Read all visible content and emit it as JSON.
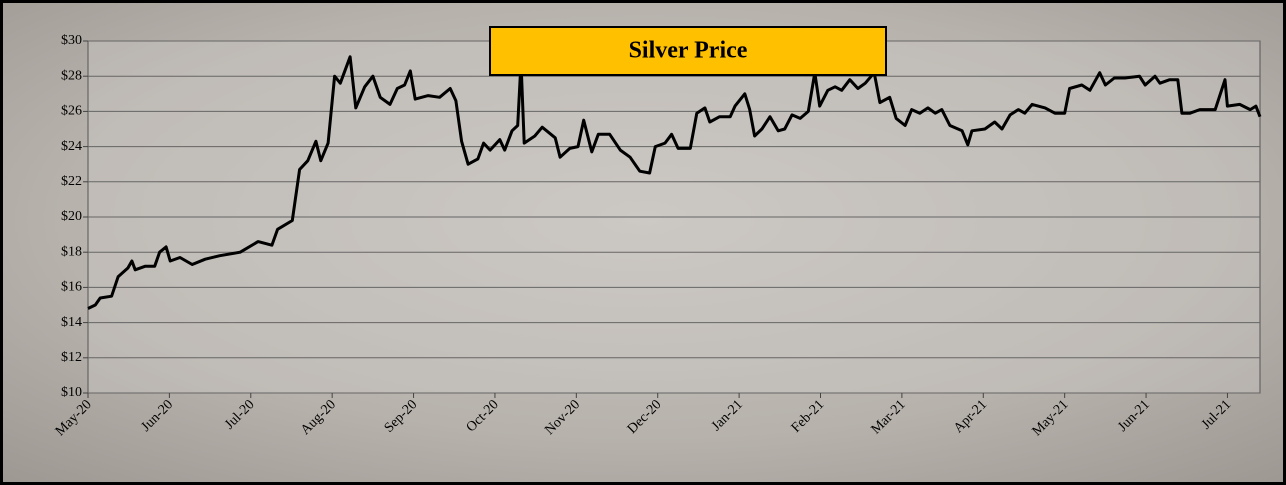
{
  "chart_data": {
    "type": "line",
    "title": "Silver Price",
    "color": "#000000",
    "grid": true,
    "xlim": [
      0,
      14.4
    ],
    "xticks": [
      {
        "value": 0,
        "label": "May-20"
      },
      {
        "value": 1,
        "label": "Jun-20"
      },
      {
        "value": 2,
        "label": "Jul-20"
      },
      {
        "value": 3,
        "label": "Aug-20"
      },
      {
        "value": 4,
        "label": "Sep-20"
      },
      {
        "value": 5,
        "label": "Oct-20"
      },
      {
        "value": 6,
        "label": "Nov-20"
      },
      {
        "value": 7,
        "label": "Dec-20"
      },
      {
        "value": 8,
        "label": "Jan-21"
      },
      {
        "value": 9,
        "label": "Feb-21"
      },
      {
        "value": 10,
        "label": "Mar-21"
      },
      {
        "value": 11,
        "label": "Apr-21"
      },
      {
        "value": 12,
        "label": "May-21"
      },
      {
        "value": 13,
        "label": "Jun-21"
      },
      {
        "value": 14,
        "label": "Jul-21"
      }
    ],
    "ylim": [
      10,
      30
    ],
    "yticks": [
      {
        "value": 10,
        "label": "$10"
      },
      {
        "value": 12,
        "label": "$12"
      },
      {
        "value": 14,
        "label": "$14"
      },
      {
        "value": 16,
        "label": "$16"
      },
      {
        "value": 18,
        "label": "$18"
      },
      {
        "value": 20,
        "label": "$20"
      },
      {
        "value": 22,
        "label": "$22"
      },
      {
        "value": 24,
        "label": "$24"
      },
      {
        "value": 26,
        "label": "$26"
      },
      {
        "value": 28,
        "label": "$28"
      },
      {
        "value": 30,
        "label": "$30"
      }
    ],
    "x": [
      0,
      0.09,
      0.15,
      0.29,
      0.37,
      0.49,
      0.54,
      0.58,
      0.7,
      0.82,
      0.88,
      0.96,
      1.01,
      1.13,
      1.28,
      1.44,
      1.62,
      1.87,
      2.09,
      2.26,
      2.33,
      2.51,
      2.6,
      2.7,
      2.8,
      2.86,
      2.95,
      3.03,
      3.1,
      3.22,
      3.29,
      3.4,
      3.5,
      3.59,
      3.71,
      3.8,
      3.89,
      3.96,
      4.02,
      4.18,
      4.32,
      4.45,
      4.52,
      4.59,
      4.67,
      4.79,
      4.86,
      4.94,
      5.06,
      5.12,
      5.21,
      5.28,
      5.32,
      5.36,
      5.49,
      5.58,
      5.74,
      5.8,
      5.92,
      6.02,
      6.09,
      6.19,
      6.27,
      6.41,
      6.54,
      6.66,
      6.78,
      6.9,
      6.97,
      7.09,
      7.17,
      7.25,
      7.4,
      7.48,
      7.58,
      7.64,
      7.76,
      7.89,
      7.95,
      8.07,
      8.13,
      8.19,
      8.28,
      8.38,
      8.48,
      8.56,
      8.65,
      8.75,
      8.85,
      8.93,
      8.99,
      9.09,
      9.18,
      9.26,
      9.36,
      9.46,
      9.55,
      9.66,
      9.73,
      9.85,
      9.93,
      10.04,
      10.12,
      10.22,
      10.32,
      10.41,
      10.49,
      10.59,
      10.74,
      10.81,
      10.86,
      11.02,
      11.14,
      11.23,
      11.33,
      11.43,
      11.51,
      11.6,
      11.76,
      11.88,
      12.0,
      12.06,
      12.21,
      12.31,
      12.43,
      12.5,
      12.61,
      12.74,
      12.92,
      12.99,
      13.11,
      13.17,
      13.29,
      13.39,
      13.44,
      13.54,
      13.66,
      13.85,
      13.97,
      14.0,
      14.15,
      14.28,
      14.35,
      14.4
    ],
    "values": [
      14.8,
      15.0,
      15.4,
      15.5,
      16.6,
      17.1,
      17.5,
      17.0,
      17.2,
      17.2,
      18.0,
      18.3,
      17.5,
      17.7,
      17.3,
      17.6,
      17.8,
      18.0,
      18.6,
      18.4,
      19.3,
      19.8,
      22.7,
      23.2,
      24.3,
      23.2,
      24.2,
      28.0,
      27.6,
      29.1,
      26.2,
      27.4,
      28.0,
      26.8,
      26.4,
      27.3,
      27.5,
      28.3,
      26.7,
      26.9,
      26.8,
      27.3,
      26.6,
      24.3,
      23.0,
      23.3,
      24.2,
      23.8,
      24.4,
      23.8,
      24.9,
      25.2,
      28.8,
      24.2,
      24.6,
      25.1,
      24.5,
      23.4,
      23.9,
      24.0,
      25.5,
      23.7,
      24.7,
      24.7,
      23.8,
      23.4,
      22.6,
      22.5,
      24.0,
      24.2,
      24.7,
      23.9,
      23.9,
      25.9,
      26.2,
      25.4,
      25.7,
      25.7,
      26.3,
      27.0,
      26.1,
      24.6,
      25.0,
      25.7,
      24.9,
      25.0,
      25.8,
      25.6,
      26.0,
      28.2,
      26.3,
      27.2,
      27.4,
      27.2,
      27.8,
      27.3,
      27.6,
      28.2,
      26.5,
      26.8,
      25.6,
      25.2,
      26.1,
      25.9,
      26.2,
      25.9,
      26.1,
      25.2,
      24.9,
      24.1,
      24.9,
      25.0,
      25.4,
      25.0,
      25.8,
      26.1,
      25.9,
      26.4,
      26.2,
      25.9,
      25.9,
      27.3,
      27.5,
      27.2,
      28.2,
      27.5,
      27.9,
      27.9,
      28.0,
      27.5,
      28.0,
      27.6,
      27.8,
      27.8,
      25.9,
      25.9,
      26.1,
      26.1,
      27.8,
      26.3,
      26.4,
      26.1,
      26.3,
      25.7
    ]
  }
}
